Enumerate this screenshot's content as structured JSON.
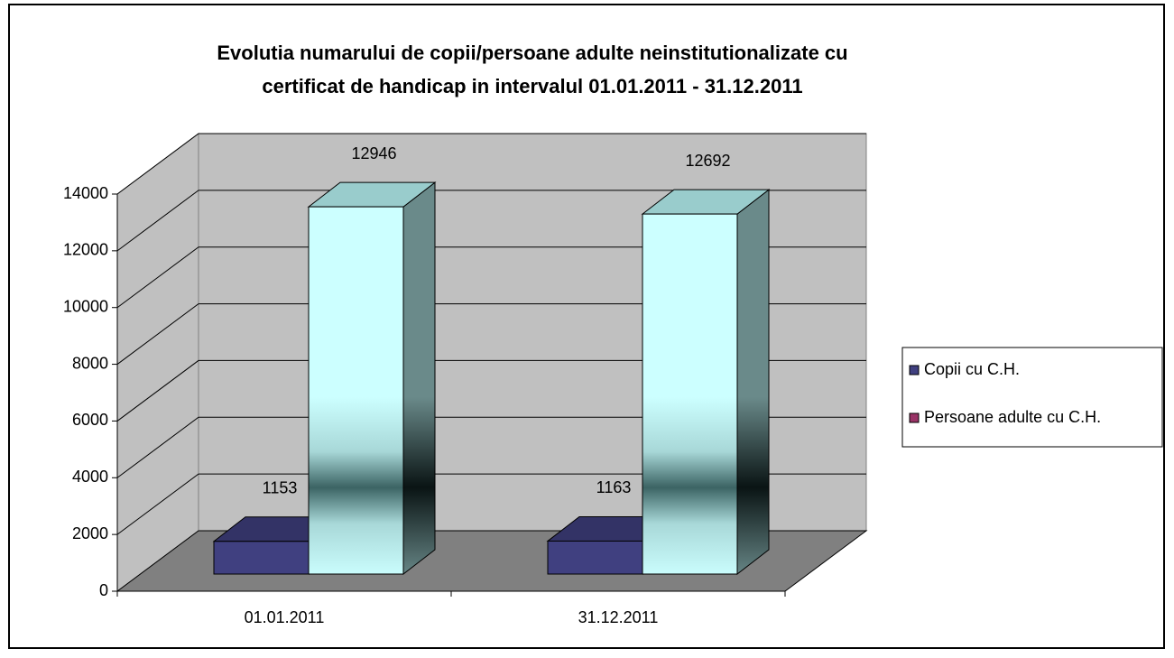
{
  "chart_data": {
    "type": "bar3d",
    "title": [
      "Evolutia numarului de copii/persoane adulte neinstitutionalizate cu",
      "certificat de handicap in intervalul 01.01.2011 - 31.12.2011"
    ],
    "categories": [
      "01.01.2011",
      "31.12.2011"
    ],
    "series": [
      {
        "name": "Copii cu C.H.",
        "color": "#404080",
        "values": [
          1153,
          1163
        ]
      },
      {
        "name": "Persoane adulte cu C.H.",
        "color": "#993366",
        "face_color": "#ccffff",
        "values": [
          12946,
          12692
        ]
      }
    ],
    "ylim": [
      0,
      14000
    ],
    "yticks": [
      0,
      2000,
      4000,
      6000,
      8000,
      10000,
      12000,
      14000
    ],
    "grid": true,
    "legend": "right"
  }
}
